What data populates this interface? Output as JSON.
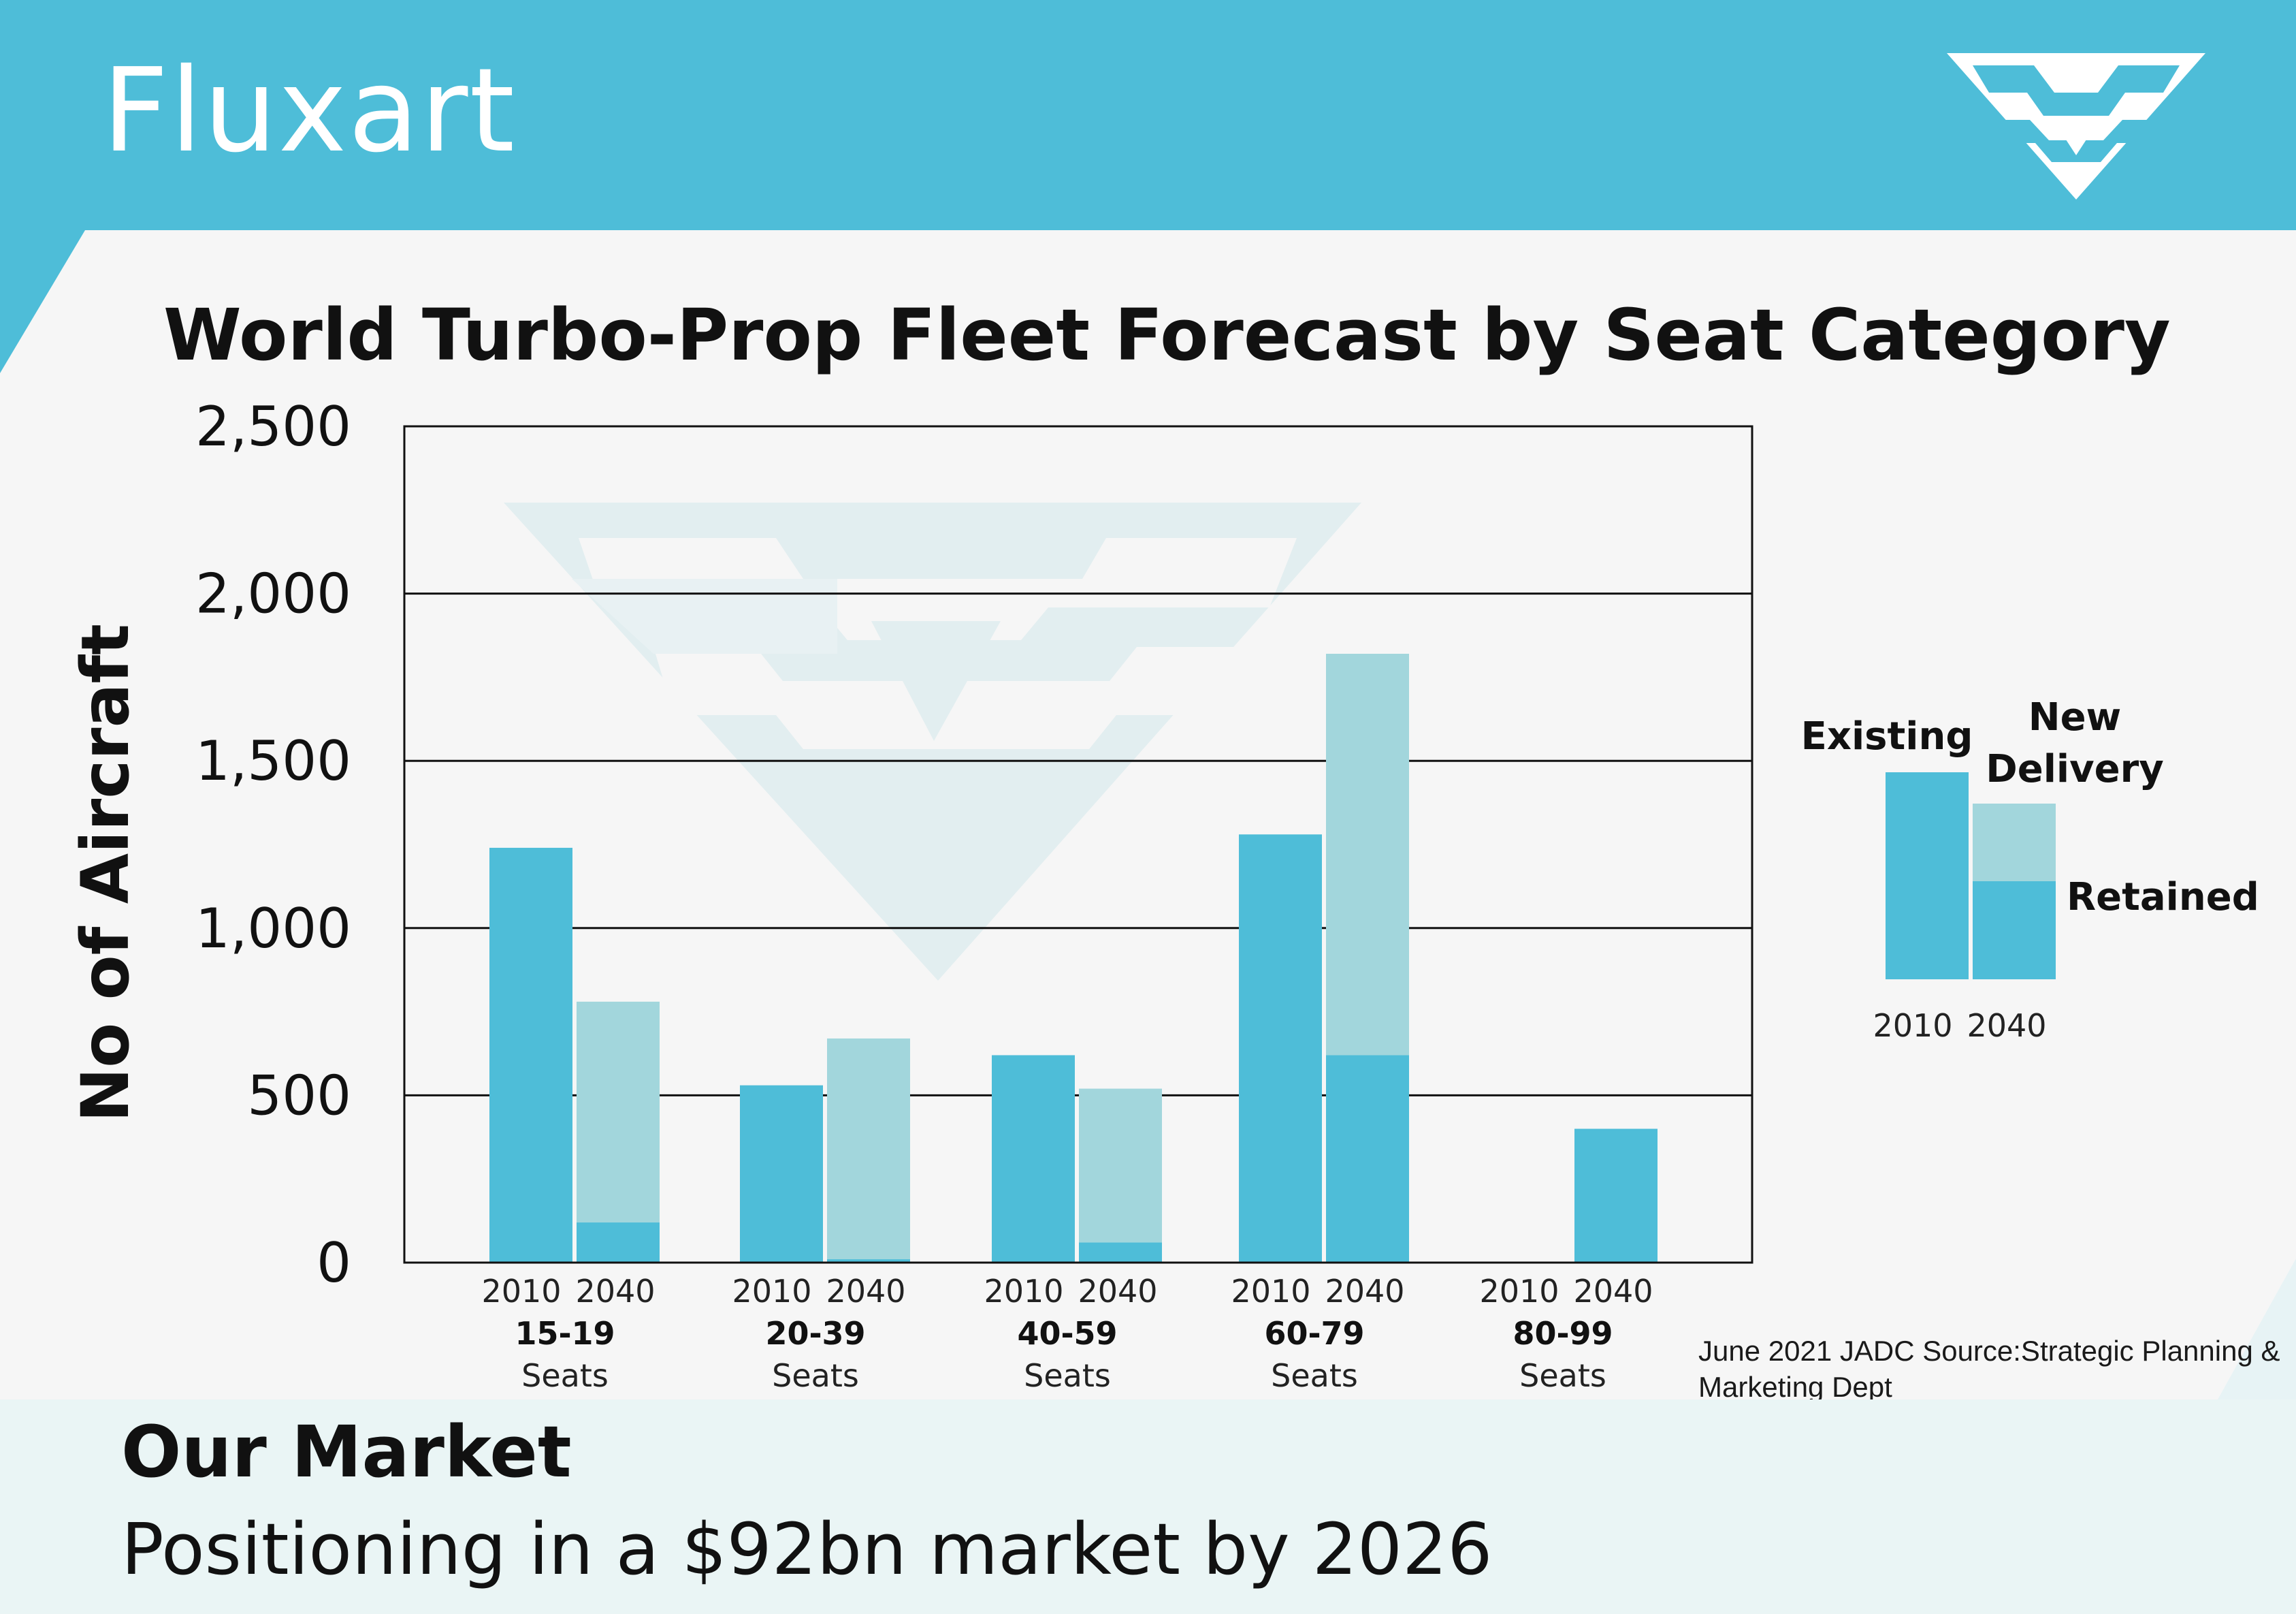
{
  "brand": {
    "name": "Fluxart"
  },
  "colors": {
    "header": "#4ebdd8",
    "existing": "#4ebdd8",
    "new_delivery": "#a2d6dc",
    "watermark": "#e2eef0",
    "footer": "#eaf5f5"
  },
  "icons": {
    "logo": "fluxart-chevron-logo",
    "watermark": "fluxart-chevron-watermark"
  },
  "chart_data": {
    "type": "bar",
    "title": "World Turbo-Prop Fleet Forecast by Seat Category",
    "ylabel": "No of Aircraft",
    "ylim": [
      0,
      2500
    ],
    "yticks": [
      {
        "value": 0,
        "label": "0"
      },
      {
        "value": 500,
        "label": "500"
      },
      {
        "value": 1000,
        "label": "1,000"
      },
      {
        "value": 1500,
        "label": "1,500"
      },
      {
        "value": 2000,
        "label": "2,000"
      },
      {
        "value": 2500,
        "label": "2,500"
      }
    ],
    "grid": true,
    "categories": [
      {
        "range": "15-19",
        "unit": "Seats",
        "year_a": "2010",
        "year_b": "2040",
        "existing_2010": 1240,
        "retained_2040": 120,
        "new_delivery_2040": 660
      },
      {
        "range": "20-39",
        "unit": "Seats",
        "year_a": "2010",
        "year_b": "2040",
        "existing_2010": 530,
        "retained_2040": 10,
        "new_delivery_2040": 660
      },
      {
        "range": "40-59",
        "unit": "Seats",
        "year_a": "2010",
        "year_b": "2040",
        "existing_2010": 620,
        "retained_2040": 60,
        "new_delivery_2040": 460
      },
      {
        "range": "60-79",
        "unit": "Seats",
        "year_a": "2010",
        "year_b": "2040",
        "existing_2010": 1280,
        "retained_2040": 620,
        "new_delivery_2040": 1200
      },
      {
        "range": "80-99",
        "unit": "Seats",
        "year_a": "2010",
        "year_b": "2040",
        "existing_2010": 0,
        "retained_2040": 400,
        "new_delivery_2040": 0
      }
    ],
    "legend": {
      "placement": "right",
      "existing": "Existing",
      "new_delivery_line1": "New",
      "new_delivery_line2": "Delivery",
      "retained": "Retained",
      "year_a": "2010",
      "year_b": "2040"
    },
    "source": "June  2021 JADC Source:Strategic Planning & Marketing Dept"
  },
  "market": {
    "title": "Our Market",
    "subtitle": "Positioning in a $92bn market by 2026"
  }
}
